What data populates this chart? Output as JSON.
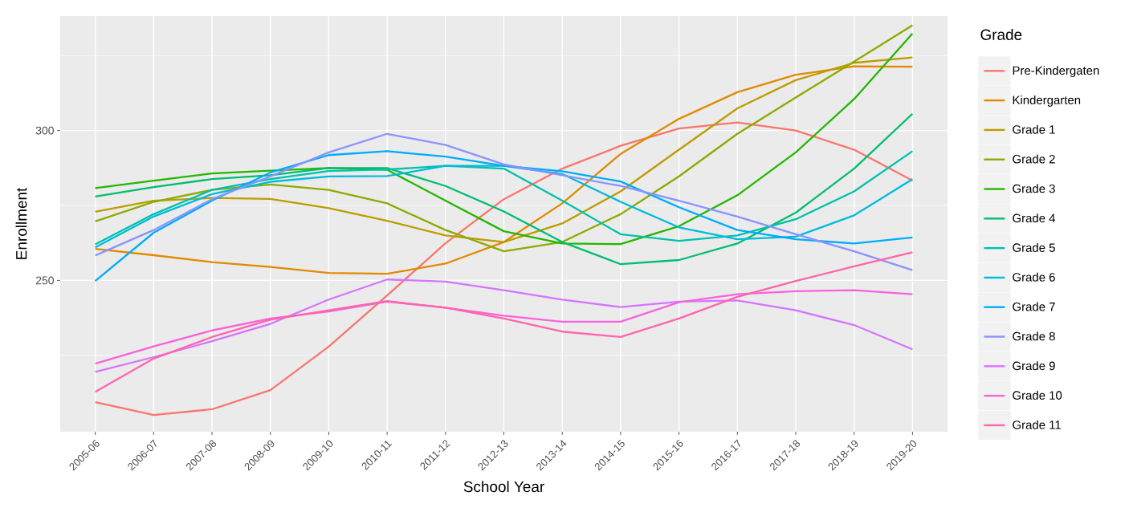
{
  "chart_data": {
    "type": "line",
    "xlabel": "School Year",
    "ylabel": "Enrollment",
    "legend_title": "Grade",
    "categories": [
      "2005-06",
      "2006-07",
      "2007-08",
      "2008-09",
      "2009-10",
      "2010-11",
      "2011-12",
      "2012-13",
      "2013-14",
      "2014-15",
      "2015-16",
      "2016-17",
      "2017-18",
      "2018-19",
      "2019-20"
    ],
    "ylim": [
      199.5,
      338.2
    ],
    "yticks": [
      250,
      300
    ],
    "grid": true,
    "legend": "right",
    "line_style": "solid",
    "series": [
      {
        "name": "Pre-Kindergaten",
        "color": "#f8766d",
        "values": [
          209.4,
          205.1,
          207,
          213.4,
          227.9,
          245,
          262.4,
          277.1,
          287.3,
          294.9,
          300.7,
          302.7,
          300,
          293.6,
          283.3
        ]
      },
      {
        "name": "Kindergarten",
        "color": "#e18a00",
        "values": [
          260.5,
          258.4,
          256.1,
          254.5,
          252.5,
          252.2,
          255.6,
          262.8,
          275.7,
          292.2,
          303.9,
          312.8,
          318.6,
          321.4,
          321.3
        ]
      },
      {
        "name": "Grade 1",
        "color": "#be9c00",
        "values": [
          272.9,
          276.6,
          277.5,
          277.2,
          274.1,
          269.9,
          265,
          262.8,
          269,
          279.7,
          293.6,
          307.4,
          316.8,
          322.6,
          324.4
        ]
      },
      {
        "name": "Grade 2",
        "color": "#8cab00",
        "values": [
          269.7,
          276.2,
          280.2,
          282,
          280.2,
          275.7,
          266.8,
          259.7,
          262.8,
          272.1,
          284.7,
          298.9,
          311,
          323,
          335.1
        ]
      },
      {
        "name": "Grade 3",
        "color": "#24b700",
        "values": [
          280.8,
          283.3,
          285.7,
          286.6,
          287.5,
          286.9,
          276.6,
          266.4,
          262.3,
          262.1,
          268.1,
          278.4,
          292.7,
          310.5,
          332.4
        ]
      },
      {
        "name": "Grade 4",
        "color": "#00be70",
        "values": [
          278,
          281.1,
          283.8,
          285.1,
          287.5,
          287.5,
          281.5,
          273,
          262.8,
          255.4,
          256.8,
          262.3,
          272.6,
          287.3,
          305.6
        ]
      },
      {
        "name": "Grade 5",
        "color": "#00c1ab",
        "values": [
          262,
          272.1,
          280.2,
          283.8,
          286.5,
          287,
          288.2,
          287.3,
          276.6,
          265.4,
          263.2,
          265,
          270.4,
          279.7,
          293.1
        ]
      },
      {
        "name": "Grade 6",
        "color": "#00bbda",
        "values": [
          261,
          271.3,
          278.8,
          282.9,
          284.7,
          284.8,
          288.2,
          288.2,
          285.5,
          276.2,
          267.7,
          263.7,
          264.6,
          271.7,
          283.8
        ]
      },
      {
        "name": "Grade 7",
        "color": "#00acfc",
        "values": [
          249.8,
          265.9,
          276.6,
          286,
          291.8,
          293.1,
          291.3,
          288.2,
          286.4,
          283,
          274.4,
          266.8,
          263.7,
          262.3,
          264.3
        ]
      },
      {
        "name": "Grade 8",
        "color": "#8b93ff",
        "values": [
          258.3,
          266.8,
          277.1,
          284.7,
          292.7,
          298.9,
          295.2,
          288.7,
          285.1,
          281.5,
          276.6,
          271.3,
          265.4,
          259.7,
          253.4
        ]
      },
      {
        "name": "Grade 9",
        "color": "#d575fe",
        "values": [
          219.5,
          224.4,
          229.7,
          235.5,
          243.6,
          250.3,
          249.6,
          246.7,
          243.6,
          241.1,
          242.9,
          243.3,
          240,
          235.1,
          227
        ]
      },
      {
        "name": "Grade 10",
        "color": "#f962dd",
        "values": [
          222.2,
          228,
          233.3,
          237.3,
          239.6,
          242.9,
          240.9,
          238.2,
          236.2,
          236.2,
          242.7,
          245.4,
          246.4,
          246.7,
          245.4
        ]
      },
      {
        "name": "Grade 11",
        "color": "#ff65ac",
        "values": [
          212.8,
          223.9,
          231.1,
          236.9,
          240,
          243.1,
          240.9,
          237.3,
          232.9,
          231.1,
          237.3,
          244.5,
          249.8,
          254.7,
          259.4
        ]
      }
    ]
  }
}
